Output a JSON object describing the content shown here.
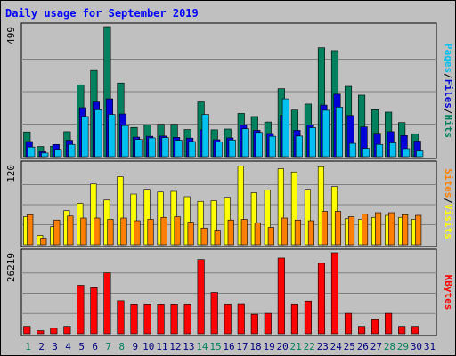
{
  "chart_data": {
    "type": "bar",
    "title": "Daily usage for September 2019",
    "x": [
      "1",
      "2",
      "3",
      "4",
      "5",
      "6",
      "7",
      "8",
      "9",
      "10",
      "11",
      "12",
      "13",
      "14",
      "15",
      "16",
      "17",
      "18",
      "19",
      "20",
      "21",
      "22",
      "23",
      "24",
      "25",
      "26",
      "27",
      "28",
      "29",
      "30",
      "31"
    ],
    "weekend_days": [
      "1",
      "7",
      "8",
      "14",
      "15",
      "21",
      "22",
      "28",
      "29"
    ],
    "panels": [
      {
        "id": "top",
        "ymax_label": "499",
        "ymax": 499,
        "series": [
          {
            "name": "Hits",
            "color": "#00805c",
            "values": [
              95,
              39,
              40,
              96,
              276,
              331,
              499,
              283,
              112,
              121,
              124,
              124,
              104,
              210,
              103,
              106,
              166,
              154,
              133,
              261,
              179,
              202,
              418,
              407,
              270,
              236,
              180,
              171,
              131,
              88,
              null
            ]
          },
          {
            "name": "Files",
            "color": "#0000d8",
            "values": [
              58,
              19,
              47,
              63,
              188,
              210,
              222,
              164,
              75,
              78,
              79,
              74,
              71,
              103,
              65,
              72,
              122,
              101,
              89,
              159,
              101,
              122,
              198,
              240,
              158,
              114,
              90,
              96,
              81,
              60,
              null
            ]
          },
          {
            "name": "Pages",
            "color": "#00c0f0",
            "values": [
              37,
              14,
              28,
              47,
              154,
              180,
              162,
              119,
              66,
              72,
              73,
              63,
              58,
              162,
              56,
              64,
              107,
              93,
              78,
              222,
              79,
              111,
              178,
              190,
              51,
              32,
              47,
              53,
              31,
              22,
              null
            ]
          }
        ]
      },
      {
        "id": "middle",
        "ymax_label": "120",
        "ymax": 120,
        "series": [
          {
            "name": "Visits",
            "color": "#ffff00",
            "values": [
              42,
              14,
              27,
              51,
              62,
              91,
              67,
              102,
              76,
              83,
              79,
              80,
              72,
              65,
              66,
              71,
              118,
              78,
              82,
              114,
              109,
              83,
              117,
              87,
              39,
              38,
              41,
              44,
              41,
              38,
              null
            ]
          },
          {
            "name": "Sites",
            "color": "#ff8000",
            "values": [
              45,
              10,
              37,
              43,
              40,
              40,
              38,
              40,
              36,
              38,
              41,
              42,
              34,
              25,
              22,
              37,
              38,
              33,
              26,
              40,
              37,
              36,
              50,
              50,
              42,
              46,
              48,
              48,
              45,
              44,
              null
            ]
          }
        ]
      },
      {
        "id": "bottom",
        "ymax_label": "26219",
        "ymax": 26219,
        "series": [
          {
            "name": "KBytes",
            "color": "#ff0000",
            "values": [
              2400,
              1000,
              1800,
              2400,
              15700,
              14900,
              19700,
              10700,
              9400,
              9400,
              9400,
              9400,
              9400,
              24000,
              13400,
              9400,
              9500,
              6300,
              6600,
              24500,
              9400,
              10600,
              22800,
              26219,
              6600,
              2400,
              4800,
              6600,
              2400,
              2400,
              null
            ]
          }
        ]
      }
    ],
    "right_labels": {
      "top": [
        {
          "text": "Pages",
          "color": "#00c0f0"
        },
        {
          "text": "/",
          "color": "#000000"
        },
        {
          "text": "Files",
          "color": "#0000d8"
        },
        {
          "text": "/",
          "color": "#000000"
        },
        {
          "text": "Hits",
          "color": "#00805c"
        }
      ],
      "middle": [
        {
          "text": "Sites",
          "color": "#ff8000"
        },
        {
          "text": "/",
          "color": "#000000"
        },
        {
          "text": "Visits",
          "color": "#ffff00"
        }
      ],
      "bottom": [
        {
          "text": "KBytes",
          "color": "#ff0000"
        }
      ]
    }
  },
  "colors": {
    "background": "#c0c0c0",
    "frame": "#000000",
    "title": "#0000ff",
    "weekend_label": "#00805c",
    "weekday_label": "#000080",
    "gridline": "#808080"
  }
}
